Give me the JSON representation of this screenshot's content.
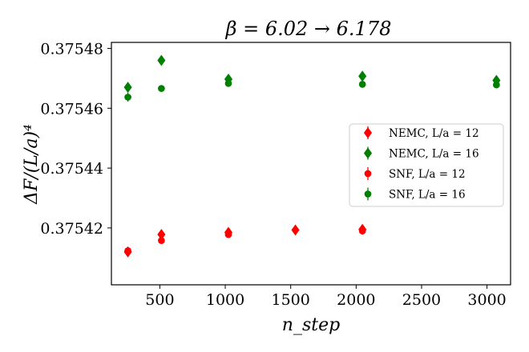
{
  "chart_data": {
    "type": "scatter",
    "title": "β = 6.02 → 6.178",
    "xlabel": "n_step",
    "ylabel": "ΔF/(L/a)⁴",
    "xlim": [
      130,
      3180
    ],
    "ylim": [
      0.375401,
      0.375482
    ],
    "xticks": [
      500,
      1000,
      1500,
      2000,
      2500,
      3000
    ],
    "yticks": [
      0.37542,
      0.37544,
      0.37546,
      0.37548
    ],
    "ytick_labels": [
      "0.37542",
      "0.37544",
      "0.37546",
      "0.37548"
    ],
    "legend_position": "center-right",
    "series": [
      {
        "name": "NEMC, L/a = 12",
        "legend_label": "NEMC, L/a = 12",
        "marker": "diamond",
        "color": "#ff0000",
        "points": [
          {
            "x": 256,
            "y": 0.375412,
            "err": 5e-07
          },
          {
            "x": 512,
            "y": 0.3754178,
            "err": 4e-07
          },
          {
            "x": 1024,
            "y": 0.3754185,
            "err": 3e-07
          },
          {
            "x": 1536,
            "y": 0.3754193,
            "err": 1e-07
          },
          {
            "x": 2048,
            "y": 0.3754195,
            "err": 2e-07
          }
        ]
      },
      {
        "name": "NEMC, L/a = 16",
        "legend_label": "NEMC, L/a = 16",
        "marker": "diamond",
        "color": "#008000",
        "points": [
          {
            "x": 256,
            "y": 0.375467,
            "err": 2e-07
          },
          {
            "x": 512,
            "y": 0.375476,
            "err": 3e-07
          },
          {
            "x": 1024,
            "y": 0.3754697,
            "err": 1e-07
          },
          {
            "x": 2048,
            "y": 0.3754707,
            "err": 1e-07
          },
          {
            "x": 3072,
            "y": 0.3754693,
            "err": 1e-07
          }
        ]
      },
      {
        "name": "SNF, L/a = 12",
        "legend_label": "SNF, L/a = 12",
        "marker": "circle",
        "color": "#ff0000",
        "points": [
          {
            "x": 256,
            "y": 0.3754124,
            "err": 6e-07
          },
          {
            "x": 512,
            "y": 0.3754158,
            "err": 2e-07
          },
          {
            "x": 1024,
            "y": 0.3754178,
            "err": 3e-07
          },
          {
            "x": 2048,
            "y": 0.375419,
            "err": 3e-07
          }
        ]
      },
      {
        "name": "SNF, L/a = 16",
        "legend_label": "SNF, L/a = 16",
        "marker": "circle",
        "color": "#008000",
        "points": [
          {
            "x": 256,
            "y": 0.3754637,
            "err": 1.5e-06
          },
          {
            "x": 512,
            "y": 0.3754666,
            "err": 1e-07
          },
          {
            "x": 1024,
            "y": 0.3754683,
            "err": 1e-07
          },
          {
            "x": 2048,
            "y": 0.375468,
            "err": 1e-07
          },
          {
            "x": 3072,
            "y": 0.3754678,
            "err": 1e-07
          }
        ]
      }
    ]
  }
}
